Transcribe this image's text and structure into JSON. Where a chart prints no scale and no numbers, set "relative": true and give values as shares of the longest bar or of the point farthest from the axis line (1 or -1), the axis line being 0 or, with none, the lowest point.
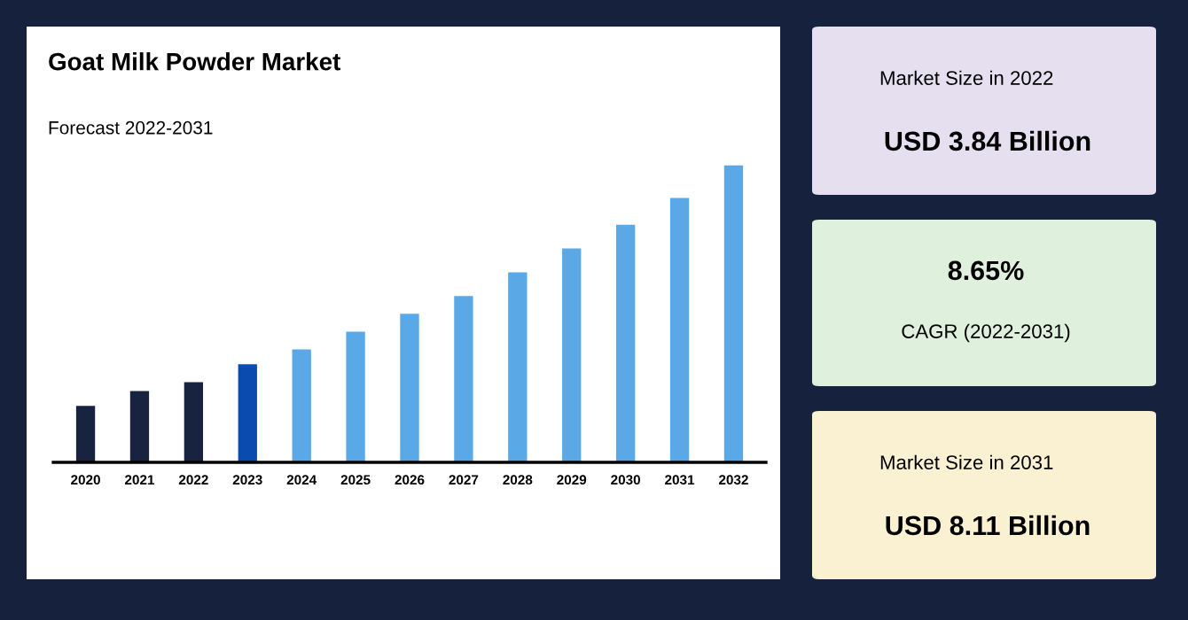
{
  "chart_data": [
    {
      "type": "bar",
      "title": "Goat Milk Powder Market",
      "subtitle": "Forecast 2022-2031",
      "relative": true,
      "categories": [
        "2020",
        "2021",
        "2022",
        "2023",
        "2024",
        "2025",
        "2026",
        "2027",
        "2028",
        "2029",
        "2030",
        "2031",
        "2032"
      ],
      "values": [
        0.19,
        0.24,
        0.27,
        0.33,
        0.38,
        0.44,
        0.5,
        0.56,
        0.64,
        0.72,
        0.8,
        0.89,
        1
      ],
      "colors": [
        "#17233f",
        "#17233f",
        "#17233f",
        "#0a4bb0",
        "#5aa8e6",
        "#5aa8e6",
        "#5aa8e6",
        "#5aa8e6",
        "#5aa8e6",
        "#5aa8e6",
        "#5aa8e6",
        "#5aa8e6",
        "#5aa8e6"
      ],
      "grid": false,
      "legend": false
    },
    {
      "type": "other",
      "annotations": [
        "Market Size in 2022",
        "USD 3.84 Billion",
        "8.65%",
        "CAGR (2022-2031)",
        "Market Size in 2031",
        "USD 8.11 Billion"
      ],
      "colors": [
        "#e6dff0",
        "#dff0dc",
        "#faf0d2"
      ]
    }
  ]
}
